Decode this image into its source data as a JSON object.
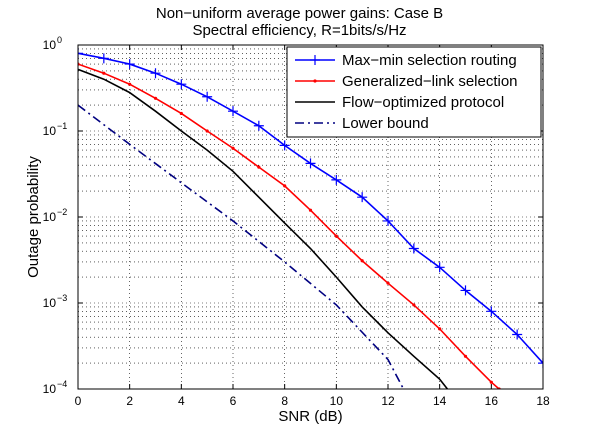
{
  "chart_data": {
    "type": "line",
    "title_lines": [
      "Non−uniform average power gains: Case B",
      "Spectral efficiency, R=1bits/s/Hz"
    ],
    "xlabel": "SNR (dB)",
    "ylabel": "Outage probability",
    "xlim": [
      0,
      18
    ],
    "ylim": [
      0.0001,
      1
    ],
    "yscale": "log",
    "grid": true,
    "legend_position": "top-right",
    "x_ticks": [
      "0",
      "2",
      "4",
      "6",
      "8",
      "10",
      "12",
      "14",
      "16",
      "18"
    ],
    "y_ticks": [
      {
        "base": "10",
        "exp": "−4"
      },
      {
        "base": "10",
        "exp": "−3"
      },
      {
        "base": "10",
        "exp": "−2"
      },
      {
        "base": "10",
        "exp": "−1"
      },
      {
        "base": "10",
        "exp": "0"
      }
    ],
    "series": [
      {
        "name": "Max−min selection routing",
        "color": "#0000ff",
        "line_style": "solid",
        "marker": "plus",
        "x": [
          0,
          1,
          2,
          3,
          4,
          5,
          6,
          7,
          8,
          9,
          10,
          11,
          12,
          13,
          14,
          15,
          16,
          17,
          18
        ],
        "y": [
          0.8,
          0.7,
          0.6,
          0.47,
          0.35,
          0.25,
          0.17,
          0.115,
          0.068,
          0.042,
          0.027,
          0.017,
          0.009,
          0.0043,
          0.0026,
          0.0014,
          0.0008,
          0.00043,
          0.0002
        ]
      },
      {
        "name": "Generalized−link selection",
        "color": "#ff0000",
        "line_style": "solid",
        "marker": "dot",
        "x": [
          0,
          1,
          2,
          3,
          4,
          5,
          6,
          7,
          8,
          9,
          10,
          11,
          12,
          13,
          14,
          15,
          16,
          16.3
        ],
        "y": [
          0.6,
          0.47,
          0.35,
          0.24,
          0.16,
          0.1,
          0.063,
          0.038,
          0.023,
          0.012,
          0.006,
          0.0031,
          0.0017,
          0.00095,
          0.0005,
          0.00024,
          0.00012,
          0.0001
        ]
      },
      {
        "name": "Flow−optimized protocol",
        "color": "#000000",
        "line_style": "solid",
        "marker": "none",
        "x": [
          0,
          1,
          2,
          3,
          4,
          5,
          6,
          7,
          8,
          9,
          10,
          11,
          12,
          13,
          14,
          14.3
        ],
        "y": [
          0.52,
          0.4,
          0.28,
          0.17,
          0.1,
          0.06,
          0.034,
          0.017,
          0.0085,
          0.0043,
          0.002,
          0.0009,
          0.00045,
          0.00024,
          0.00013,
          0.0001
        ]
      },
      {
        "name": "Lower bound",
        "color": "#000080",
        "line_style": "dashdot",
        "marker": "none",
        "x": [
          0,
          2,
          4,
          6,
          8,
          10,
          12,
          12.6
        ],
        "y": [
          0.2,
          0.07,
          0.025,
          0.009,
          0.003,
          0.00095,
          0.00022,
          0.0001
        ]
      }
    ]
  }
}
